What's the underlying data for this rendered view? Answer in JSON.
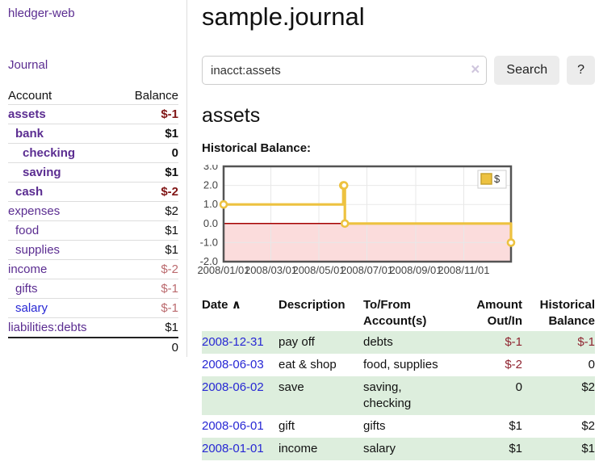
{
  "sidebar": {
    "brand": "hledger-web",
    "nav": {
      "journal": "Journal"
    },
    "accounts_table": {
      "headers": {
        "account": "Account",
        "balance": "Balance"
      },
      "rows": [
        {
          "name": "assets",
          "depth": 1,
          "bold": true,
          "balance": "$-1",
          "balance_style": "neg-strong",
          "link_color": "purple"
        },
        {
          "name": "bank",
          "depth": 2,
          "bold": true,
          "balance": "$1",
          "balance_style": "",
          "link_color": "purple"
        },
        {
          "name": "checking",
          "depth": 3,
          "bold": true,
          "balance": "0",
          "balance_style": "",
          "link_color": "purple"
        },
        {
          "name": "saving",
          "depth": 3,
          "bold": true,
          "balance": "$1",
          "balance_style": "",
          "link_color": "purple"
        },
        {
          "name": "cash",
          "depth": 2,
          "bold": true,
          "balance": "$-2",
          "balance_style": "neg-strong",
          "link_color": "purple"
        },
        {
          "name": "expenses",
          "depth": 1,
          "bold": false,
          "balance": "$2",
          "balance_style": "",
          "link_color": "purple"
        },
        {
          "name": "food",
          "depth": 2,
          "bold": false,
          "balance": "$1",
          "balance_style": "",
          "link_color": "purple"
        },
        {
          "name": "supplies",
          "depth": 2,
          "bold": false,
          "balance": "$1",
          "balance_style": "",
          "link_color": "purple"
        },
        {
          "name": "income",
          "depth": 1,
          "bold": false,
          "balance": "$-2",
          "balance_style": "neg-soft",
          "link_color": "purple"
        },
        {
          "name": "gifts",
          "depth": 2,
          "bold": false,
          "balance": "$-1",
          "balance_style": "neg-soft",
          "link_color": "purple"
        },
        {
          "name": "salary",
          "depth": 2,
          "bold": false,
          "balance": "$-1",
          "balance_style": "neg-soft",
          "link_color": "blue"
        },
        {
          "name": "liabilities:debts",
          "depth": 1,
          "bold": false,
          "balance": "$1",
          "balance_style": "",
          "link_color": "purple"
        }
      ],
      "total": "0"
    }
  },
  "header": {
    "title": "sample.journal"
  },
  "search": {
    "value": "inacct:assets",
    "clear_icon": "×",
    "search_label": "Search",
    "help_label": "?"
  },
  "account_page": {
    "heading": "assets",
    "chart_label": "Historical Balance:"
  },
  "chart_data": {
    "type": "line",
    "title": "Historical Balance",
    "step": true,
    "series": [
      {
        "name": "$",
        "color": "#edc240",
        "points": [
          {
            "date": "2008-01-01",
            "day": 0,
            "value": 1
          },
          {
            "date": "2008-06-01",
            "day": 152,
            "value": 2
          },
          {
            "date": "2008-06-02",
            "day": 153,
            "value": 2
          },
          {
            "date": "2008-06-03",
            "day": 154,
            "value": 0
          },
          {
            "date": "2008-12-31",
            "day": 365,
            "value": -1
          }
        ]
      }
    ],
    "xlim_days": [
      0,
      365
    ],
    "ylim": [
      -2,
      3
    ],
    "yticks": [
      "3.0",
      "2.0",
      "1.0",
      "0.0",
      "-1.0",
      "-2.0"
    ],
    "xticks": [
      {
        "day": 0,
        "label": "2008/01/01"
      },
      {
        "day": 60,
        "label": "2008/03/01"
      },
      {
        "day": 121,
        "label": "2008/05/01"
      },
      {
        "day": 182,
        "label": "2008/07/01"
      },
      {
        "day": 244,
        "label": "2008/09/01"
      },
      {
        "day": 305,
        "label": "2008/11/01"
      }
    ],
    "legend": {
      "label": "$",
      "position": "top-right"
    },
    "grid_color": "#e8e8e8",
    "border_color": "#545454",
    "negative_region_color": "#fbdcdc",
    "zero_line_color": "#a40000"
  },
  "register_table": {
    "headers": {
      "date": "Date",
      "sort_icon": "∧",
      "description": "Description",
      "accounts": "To/From Account(s)",
      "amount": "Amount Out/In",
      "balance": "Historical Balance"
    },
    "rows": [
      {
        "date": "2008-12-31",
        "description": "pay off",
        "account_lines": [
          "debts"
        ],
        "amount": "$-1",
        "amount_negative": true,
        "balance": "$-1",
        "balance_negative": true
      },
      {
        "date": "2008-06-03",
        "description": "eat & shop",
        "account_lines": [
          "food, supplies"
        ],
        "amount": "$-2",
        "amount_negative": true,
        "balance": "0",
        "balance_negative": false
      },
      {
        "date": "2008-06-02",
        "description": "save",
        "account_lines": [
          "saving,",
          "checking"
        ],
        "amount": "0",
        "amount_negative": false,
        "balance": "$2",
        "balance_negative": false
      },
      {
        "date": "2008-06-01",
        "description": "gift",
        "account_lines": [
          "gifts"
        ],
        "amount": "$1",
        "amount_negative": false,
        "balance": "$2",
        "balance_negative": false
      },
      {
        "date": "2008-01-01",
        "description": "income",
        "account_lines": [
          "salary"
        ],
        "amount": "$1",
        "amount_negative": false,
        "balance": "$1",
        "balance_negative": false
      }
    ]
  },
  "colors": {
    "link_purple": "#5b2d91",
    "link_blue": "#2727d4",
    "negative_strong": "#801515",
    "negative_soft": "#bb6a6e",
    "table_negative": "#8f2430",
    "row_stripe_green": "#ddeedd",
    "series_gold": "#edc240"
  }
}
